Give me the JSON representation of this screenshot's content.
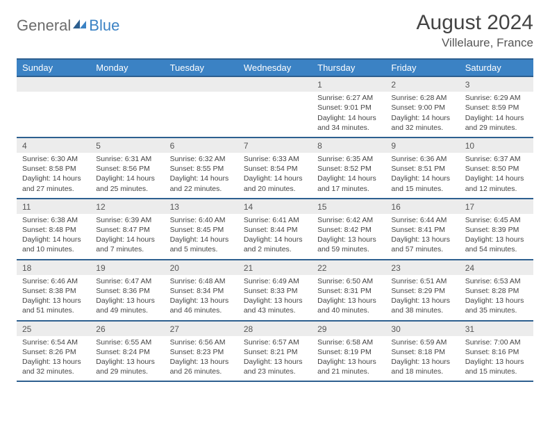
{
  "logo": {
    "part1": "General",
    "part2": "Blue"
  },
  "title": "August 2024",
  "location": "Villelaure, France",
  "colors": {
    "accent": "#3b82c4",
    "border": "#2d5f8f",
    "daybg": "#ececec"
  },
  "weekdays": [
    "Sunday",
    "Monday",
    "Tuesday",
    "Wednesday",
    "Thursday",
    "Friday",
    "Saturday"
  ],
  "weeks": [
    [
      null,
      null,
      null,
      null,
      {
        "n": "1",
        "sr": "6:27 AM",
        "ss": "9:01 PM",
        "dl": "14 hours and 34 minutes."
      },
      {
        "n": "2",
        "sr": "6:28 AM",
        "ss": "9:00 PM",
        "dl": "14 hours and 32 minutes."
      },
      {
        "n": "3",
        "sr": "6:29 AM",
        "ss": "8:59 PM",
        "dl": "14 hours and 29 minutes."
      }
    ],
    [
      {
        "n": "4",
        "sr": "6:30 AM",
        "ss": "8:58 PM",
        "dl": "14 hours and 27 minutes."
      },
      {
        "n": "5",
        "sr": "6:31 AM",
        "ss": "8:56 PM",
        "dl": "14 hours and 25 minutes."
      },
      {
        "n": "6",
        "sr": "6:32 AM",
        "ss": "8:55 PM",
        "dl": "14 hours and 22 minutes."
      },
      {
        "n": "7",
        "sr": "6:33 AM",
        "ss": "8:54 PM",
        "dl": "14 hours and 20 minutes."
      },
      {
        "n": "8",
        "sr": "6:35 AM",
        "ss": "8:52 PM",
        "dl": "14 hours and 17 minutes."
      },
      {
        "n": "9",
        "sr": "6:36 AM",
        "ss": "8:51 PM",
        "dl": "14 hours and 15 minutes."
      },
      {
        "n": "10",
        "sr": "6:37 AM",
        "ss": "8:50 PM",
        "dl": "14 hours and 12 minutes."
      }
    ],
    [
      {
        "n": "11",
        "sr": "6:38 AM",
        "ss": "8:48 PM",
        "dl": "14 hours and 10 minutes."
      },
      {
        "n": "12",
        "sr": "6:39 AM",
        "ss": "8:47 PM",
        "dl": "14 hours and 7 minutes."
      },
      {
        "n": "13",
        "sr": "6:40 AM",
        "ss": "8:45 PM",
        "dl": "14 hours and 5 minutes."
      },
      {
        "n": "14",
        "sr": "6:41 AM",
        "ss": "8:44 PM",
        "dl": "14 hours and 2 minutes."
      },
      {
        "n": "15",
        "sr": "6:42 AM",
        "ss": "8:42 PM",
        "dl": "13 hours and 59 minutes."
      },
      {
        "n": "16",
        "sr": "6:44 AM",
        "ss": "8:41 PM",
        "dl": "13 hours and 57 minutes."
      },
      {
        "n": "17",
        "sr": "6:45 AM",
        "ss": "8:39 PM",
        "dl": "13 hours and 54 minutes."
      }
    ],
    [
      {
        "n": "18",
        "sr": "6:46 AM",
        "ss": "8:38 PM",
        "dl": "13 hours and 51 minutes."
      },
      {
        "n": "19",
        "sr": "6:47 AM",
        "ss": "8:36 PM",
        "dl": "13 hours and 49 minutes."
      },
      {
        "n": "20",
        "sr": "6:48 AM",
        "ss": "8:34 PM",
        "dl": "13 hours and 46 minutes."
      },
      {
        "n": "21",
        "sr": "6:49 AM",
        "ss": "8:33 PM",
        "dl": "13 hours and 43 minutes."
      },
      {
        "n": "22",
        "sr": "6:50 AM",
        "ss": "8:31 PM",
        "dl": "13 hours and 40 minutes."
      },
      {
        "n": "23",
        "sr": "6:51 AM",
        "ss": "8:29 PM",
        "dl": "13 hours and 38 minutes."
      },
      {
        "n": "24",
        "sr": "6:53 AM",
        "ss": "8:28 PM",
        "dl": "13 hours and 35 minutes."
      }
    ],
    [
      {
        "n": "25",
        "sr": "6:54 AM",
        "ss": "8:26 PM",
        "dl": "13 hours and 32 minutes."
      },
      {
        "n": "26",
        "sr": "6:55 AM",
        "ss": "8:24 PM",
        "dl": "13 hours and 29 minutes."
      },
      {
        "n": "27",
        "sr": "6:56 AM",
        "ss": "8:23 PM",
        "dl": "13 hours and 26 minutes."
      },
      {
        "n": "28",
        "sr": "6:57 AM",
        "ss": "8:21 PM",
        "dl": "13 hours and 23 minutes."
      },
      {
        "n": "29",
        "sr": "6:58 AM",
        "ss": "8:19 PM",
        "dl": "13 hours and 21 minutes."
      },
      {
        "n": "30",
        "sr": "6:59 AM",
        "ss": "8:18 PM",
        "dl": "13 hours and 18 minutes."
      },
      {
        "n": "31",
        "sr": "7:00 AM",
        "ss": "8:16 PM",
        "dl": "13 hours and 15 minutes."
      }
    ]
  ]
}
